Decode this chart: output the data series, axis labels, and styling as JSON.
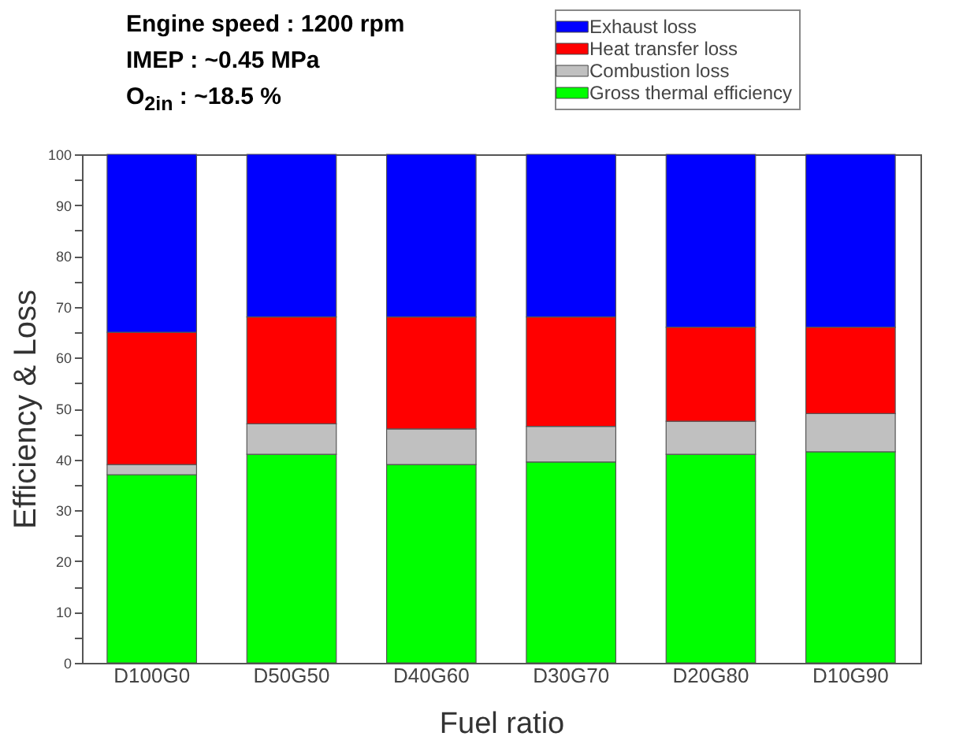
{
  "chart_data": {
    "type": "bar",
    "stacked": true,
    "xlabel": "Fuel ratio",
    "ylabel": "Efficiency & Loss",
    "annotations": [
      "Engine speed : 1200 rpm",
      "IMEP : ~0.45 MPa",
      "O$_{2in}$ : ~18.5 %"
    ],
    "categories": [
      "D100G0",
      "D50G50",
      "D40G60",
      "D30G70",
      "D20G80",
      "D10G90"
    ],
    "series": [
      {
        "name": "Gross thermal efficiency",
        "color": "#00ff00",
        "values": [
          37,
          41,
          39,
          39.5,
          41,
          41.5
        ]
      },
      {
        "name": "Combustion loss",
        "color": "#c0c0c0",
        "values": [
          2,
          6,
          7,
          7,
          6.5,
          7.5
        ]
      },
      {
        "name": "Heat transfer loss",
        "color": "#ff0000",
        "values": [
          26,
          21,
          22,
          21.5,
          18.5,
          17
        ]
      },
      {
        "name": "Exhaust loss",
        "color": "#0000ff",
        "values": [
          35,
          32,
          32,
          32,
          34,
          34
        ]
      }
    ],
    "ylim": [
      0,
      100
    ],
    "yticks": [
      0,
      {
        "value": 5,
        "label": null
      },
      10,
      {
        "value": 15,
        "label": null
      },
      20,
      {
        "value": 25,
        "label": null
      },
      30,
      {
        "value": 35,
        "label": null
      },
      40,
      {
        "value": 45,
        "label": null
      },
      50,
      {
        "value": 55,
        "label": null
      },
      60,
      {
        "value": 65,
        "label": null
      },
      70,
      {
        "value": 75,
        "label": null
      },
      80,
      {
        "value": 85,
        "label": null
      },
      90,
      {
        "value": 95,
        "label": null
      },
      100
    ],
    "legend": "top right",
    "grid": false
  }
}
